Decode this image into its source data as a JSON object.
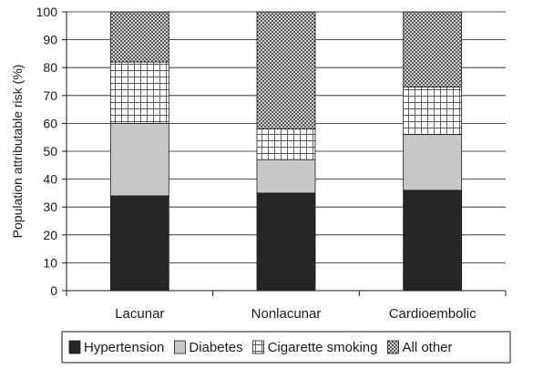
{
  "chart_data": {
    "type": "bar",
    "stacked": true,
    "categories": [
      "Lacunar",
      "Nonlacunar",
      "Cardioembolic"
    ],
    "series": [
      {
        "name": "Hypertension",
        "values": [
          34,
          35,
          36
        ],
        "color": "#262626",
        "pattern": "solid-dark"
      },
      {
        "name": "Diabetes",
        "values": [
          26,
          12,
          20
        ],
        "color": "#c8c8c8",
        "pattern": "solid-light"
      },
      {
        "name": "Cigarette smoking",
        "values": [
          22,
          11,
          17
        ],
        "color": "#ffffff",
        "pattern": "grid"
      },
      {
        "name": "All other",
        "values": [
          18,
          42,
          27
        ],
        "color": "#888888",
        "pattern": "dots"
      }
    ],
    "title": "",
    "xlabel": "",
    "ylabel": "Population attributable risk (%)",
    "ylim": [
      0,
      100
    ],
    "yticks": [
      0,
      10,
      20,
      30,
      40,
      50,
      60,
      70,
      80,
      90,
      100
    ],
    "grid": true,
    "legend_position": "bottom"
  }
}
